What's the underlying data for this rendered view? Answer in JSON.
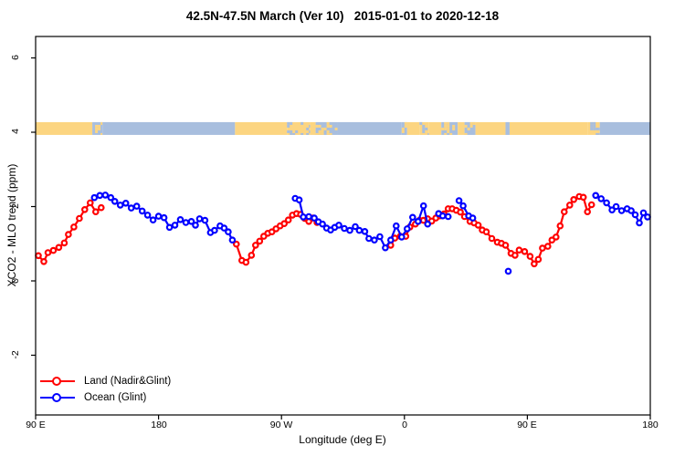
{
  "title": "42.5N-47.5N March (Ver 10)   2015-01-01 to 2020-12-18",
  "axes": {
    "x": {
      "label": "Longitude (deg E)",
      "ticks": [
        {
          "deg": 90,
          "label": "90 E"
        },
        {
          "deg": 180,
          "label": "180"
        },
        {
          "deg": 270,
          "label": "90 W"
        },
        {
          "deg": 360,
          "label": "0"
        },
        {
          "deg": 450,
          "label": "90 E"
        },
        {
          "deg": 540,
          "label": "180"
        }
      ]
    },
    "y": {
      "label": "XCO2 - MLO trend (ppm)",
      "ticks": [
        {
          "value": 6,
          "label": "6"
        },
        {
          "value": 4,
          "label": "4"
        },
        {
          "value": 2,
          "label": "2"
        },
        {
          "value": 0,
          "label": "0"
        },
        {
          "value": -2,
          "label": "-2"
        }
      ]
    }
  },
  "legend": {
    "items": [
      {
        "label": "Land (Nadir&Glint)",
        "color": "#ff0000"
      },
      {
        "label": "Ocean (Glint)",
        "color": "#0000ff"
      }
    ]
  },
  "colors": {
    "land_series": "#ff0000",
    "ocean_series": "#0000ff",
    "band_land": "#FCD581",
    "band_ocean": "#A8BEDE",
    "axis": "#000000"
  },
  "chart_data": {
    "type": "line",
    "title": "42.5N-47.5N March (Ver 10)   2015-01-01 to 2020-12-18",
    "xlabel": "Longitude (deg E)",
    "ylabel": "XCO2 - MLO trend (ppm)",
    "x_range_deg_east": [
      90,
      540
    ],
    "ylim": [
      -3.6,
      6.6
    ],
    "grid": false,
    "legend_position": "bottom-left",
    "note_x_axis": "longitude wraps eastward: 90E -> 180 -> 90W -> 0 -> 90E -> 180",
    "series": [
      {
        "name": "Land (Nadir&Glint)",
        "color": "#ff0000",
        "runs": [
          [
            [
              92,
              0.68
            ],
            [
              96,
              0.52
            ],
            [
              99,
              0.76
            ],
            [
              103,
              0.82
            ],
            [
              107,
              0.9
            ],
            [
              111,
              1.02
            ],
            [
              114,
              1.25
            ],
            [
              118,
              1.45
            ],
            [
              122,
              1.68
            ],
            [
              126,
              1.92
            ],
            [
              130,
              2.1
            ],
            [
              134,
              1.86
            ],
            [
              138,
              1.97
            ]
          ],
          [
            [
              237,
              0.99
            ],
            [
              241,
              0.55
            ],
            [
              244,
              0.5
            ],
            [
              248,
              0.69
            ],
            [
              251,
              0.96
            ],
            [
              254,
              1.07
            ],
            [
              257,
              1.2
            ],
            [
              260,
              1.28
            ],
            [
              263,
              1.32
            ],
            [
              266,
              1.4
            ],
            [
              269,
              1.48
            ],
            [
              272,
              1.54
            ],
            [
              275,
              1.64
            ],
            [
              278,
              1.77
            ],
            [
              281,
              1.81
            ],
            [
              284,
              1.79
            ],
            [
              287,
              1.68
            ],
            [
              290,
              1.6
            ],
            [
              293,
              1.69
            ],
            [
              296,
              1.57
            ]
          ],
          [
            [
              350,
              0.96
            ],
            [
              353,
              1.15
            ],
            [
              357,
              1.2
            ],
            [
              361,
              1.2
            ],
            [
              364,
              1.45
            ],
            [
              368,
              1.53
            ],
            [
              371,
              1.63
            ],
            [
              374,
              1.63
            ],
            [
              377,
              1.67
            ],
            [
              380,
              1.61
            ],
            [
              383,
              1.69
            ],
            [
              386,
              1.75
            ],
            [
              389,
              1.8
            ],
            [
              392,
              1.94
            ],
            [
              395,
              1.94
            ],
            [
              398,
              1.9
            ],
            [
              401,
              1.85
            ],
            [
              404,
              1.73
            ],
            [
              408,
              1.6
            ],
            [
              411,
              1.56
            ],
            [
              414,
              1.5
            ],
            [
              417,
              1.37
            ],
            [
              420,
              1.32
            ],
            [
              424,
              1.14
            ],
            [
              428,
              1.04
            ],
            [
              431,
              1.01
            ],
            [
              434,
              0.96
            ],
            [
              438,
              0.74
            ],
            [
              441,
              0.69
            ],
            [
              444,
              0.83
            ],
            [
              448,
              0.79
            ],
            [
              452,
              0.66
            ],
            [
              455,
              0.46
            ],
            [
              458,
              0.58
            ],
            [
              461,
              0.88
            ],
            [
              465,
              0.93
            ],
            [
              468,
              1.1
            ],
            [
              471,
              1.18
            ],
            [
              474,
              1.48
            ],
            [
              477,
              1.86
            ],
            [
              481,
              2.04
            ],
            [
              484,
              2.19
            ],
            [
              488,
              2.27
            ],
            [
              491,
              2.25
            ],
            [
              494,
              1.86
            ],
            [
              497,
              2.05
            ]
          ]
        ]
      },
      {
        "name": "Ocean (Glint)",
        "color": "#0000ff",
        "runs": [
          [
            [
              133,
              2.24
            ],
            [
              137,
              2.3
            ],
            [
              141,
              2.31
            ],
            [
              145,
              2.24
            ],
            [
              148,
              2.14
            ],
            [
              152,
              2.04
            ],
            [
              156,
              2.09
            ],
            [
              160,
              1.96
            ],
            [
              164,
              2.01
            ],
            [
              168,
              1.88
            ],
            [
              172,
              1.77
            ],
            [
              176,
              1.64
            ],
            [
              180,
              1.74
            ],
            [
              184,
              1.7
            ],
            [
              188,
              1.44
            ],
            [
              192,
              1.5
            ],
            [
              196,
              1.65
            ],
            [
              200,
              1.57
            ],
            [
              204,
              1.6
            ],
            [
              207,
              1.5
            ],
            [
              210,
              1.67
            ],
            [
              214,
              1.63
            ],
            [
              218,
              1.3
            ],
            [
              221,
              1.36
            ],
            [
              225,
              1.48
            ],
            [
              228,
              1.42
            ],
            [
              231,
              1.32
            ],
            [
              234,
              1.1
            ]
          ],
          [
            [
              280,
              2.22
            ],
            [
              283,
              2.18
            ],
            [
              286,
              1.72
            ],
            [
              290,
              1.73
            ],
            [
              294,
              1.69
            ],
            [
              297,
              1.59
            ],
            [
              300,
              1.53
            ],
            [
              303,
              1.42
            ],
            [
              306,
              1.37
            ],
            [
              309,
              1.44
            ],
            [
              312,
              1.5
            ],
            [
              316,
              1.41
            ],
            [
              320,
              1.36
            ],
            [
              324,
              1.46
            ],
            [
              327,
              1.36
            ],
            [
              331,
              1.33
            ],
            [
              334,
              1.14
            ],
            [
              338,
              1.1
            ],
            [
              342,
              1.19
            ],
            [
              346,
              0.89
            ],
            [
              350,
              1.1
            ],
            [
              354,
              1.48
            ],
            [
              358,
              1.18
            ],
            [
              362,
              1.4
            ],
            [
              366,
              1.71
            ],
            [
              370,
              1.6
            ],
            [
              374,
              2.02
            ],
            [
              377,
              1.53
            ]
          ],
          [
            [
              385,
              1.81
            ],
            [
              388,
              1.75
            ],
            [
              392,
              1.73
            ]
          ],
          [
            [
              400,
              2.16
            ],
            [
              403,
              2.02
            ],
            [
              407,
              1.75
            ],
            [
              410,
              1.69
            ]
          ],
          [
            [
              436,
              0.26
            ]
          ],
          [
            [
              500,
              2.3
            ],
            [
              504,
              2.21
            ],
            [
              508,
              2.1
            ],
            [
              512,
              1.91
            ],
            [
              515,
              2.0
            ],
            [
              519,
              1.89
            ],
            [
              523,
              1.94
            ],
            [
              526,
              1.89
            ],
            [
              529,
              1.78
            ],
            [
              532,
              1.56
            ],
            [
              535,
              1.83
            ],
            [
              538,
              1.72
            ]
          ]
        ]
      }
    ],
    "land_ocean_strip": {
      "value": 4.1,
      "segments": [
        {
          "from": 90,
          "to": 131.5,
          "type": "land"
        },
        {
          "from": 131.5,
          "to": 139,
          "type": "mix",
          "base": "ocean"
        },
        {
          "from": 139,
          "to": 236,
          "type": "ocean"
        },
        {
          "from": 236,
          "to": 274,
          "type": "land"
        },
        {
          "from": 274,
          "to": 291,
          "type": "mix",
          "base": "land"
        },
        {
          "from": 291,
          "to": 295,
          "type": "land"
        },
        {
          "from": 295,
          "to": 311,
          "type": "mix",
          "base": "ocean"
        },
        {
          "from": 311,
          "to": 358,
          "type": "ocean"
        },
        {
          "from": 358,
          "to": 362,
          "type": "mix",
          "base": "ocean"
        },
        {
          "from": 362,
          "to": 371,
          "type": "land"
        },
        {
          "from": 371,
          "to": 378,
          "type": "mix",
          "base": "land"
        },
        {
          "from": 378,
          "to": 387,
          "type": "land"
        },
        {
          "from": 387,
          "to": 399,
          "type": "mix",
          "base": "ocean"
        },
        {
          "from": 399,
          "to": 404,
          "type": "land"
        },
        {
          "from": 404,
          "to": 412,
          "type": "mix",
          "base": "ocean"
        },
        {
          "from": 412,
          "to": 434,
          "type": "land"
        },
        {
          "from": 434,
          "to": 437,
          "type": "ocean"
        },
        {
          "from": 437,
          "to": 494,
          "type": "land"
        },
        {
          "from": 494,
          "to": 503,
          "type": "mix",
          "base": "land"
        },
        {
          "from": 503,
          "to": 540,
          "type": "ocean"
        }
      ]
    }
  }
}
